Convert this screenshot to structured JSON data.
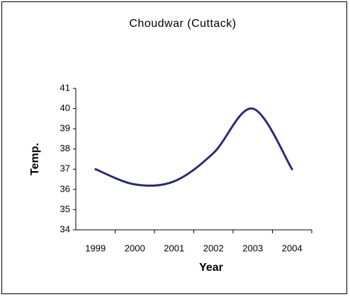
{
  "chart_data": {
    "type": "line",
    "title": "Choudwar (Cuttack)",
    "x_label": "Year",
    "y_label": "Temp.",
    "categories": [
      "1999",
      "2000",
      "2001",
      "2002",
      "2003",
      "2004"
    ],
    "series": [
      {
        "name": "Temp.",
        "color": "#2b2b7a",
        "values": [
          37,
          36.25,
          36.4,
          37.8,
          40,
          37
        ]
      }
    ],
    "ylim": [
      34,
      41
    ],
    "yticks": [
      34,
      35,
      36,
      37,
      38,
      39,
      40,
      41
    ],
    "grid": false,
    "smooth": true
  }
}
